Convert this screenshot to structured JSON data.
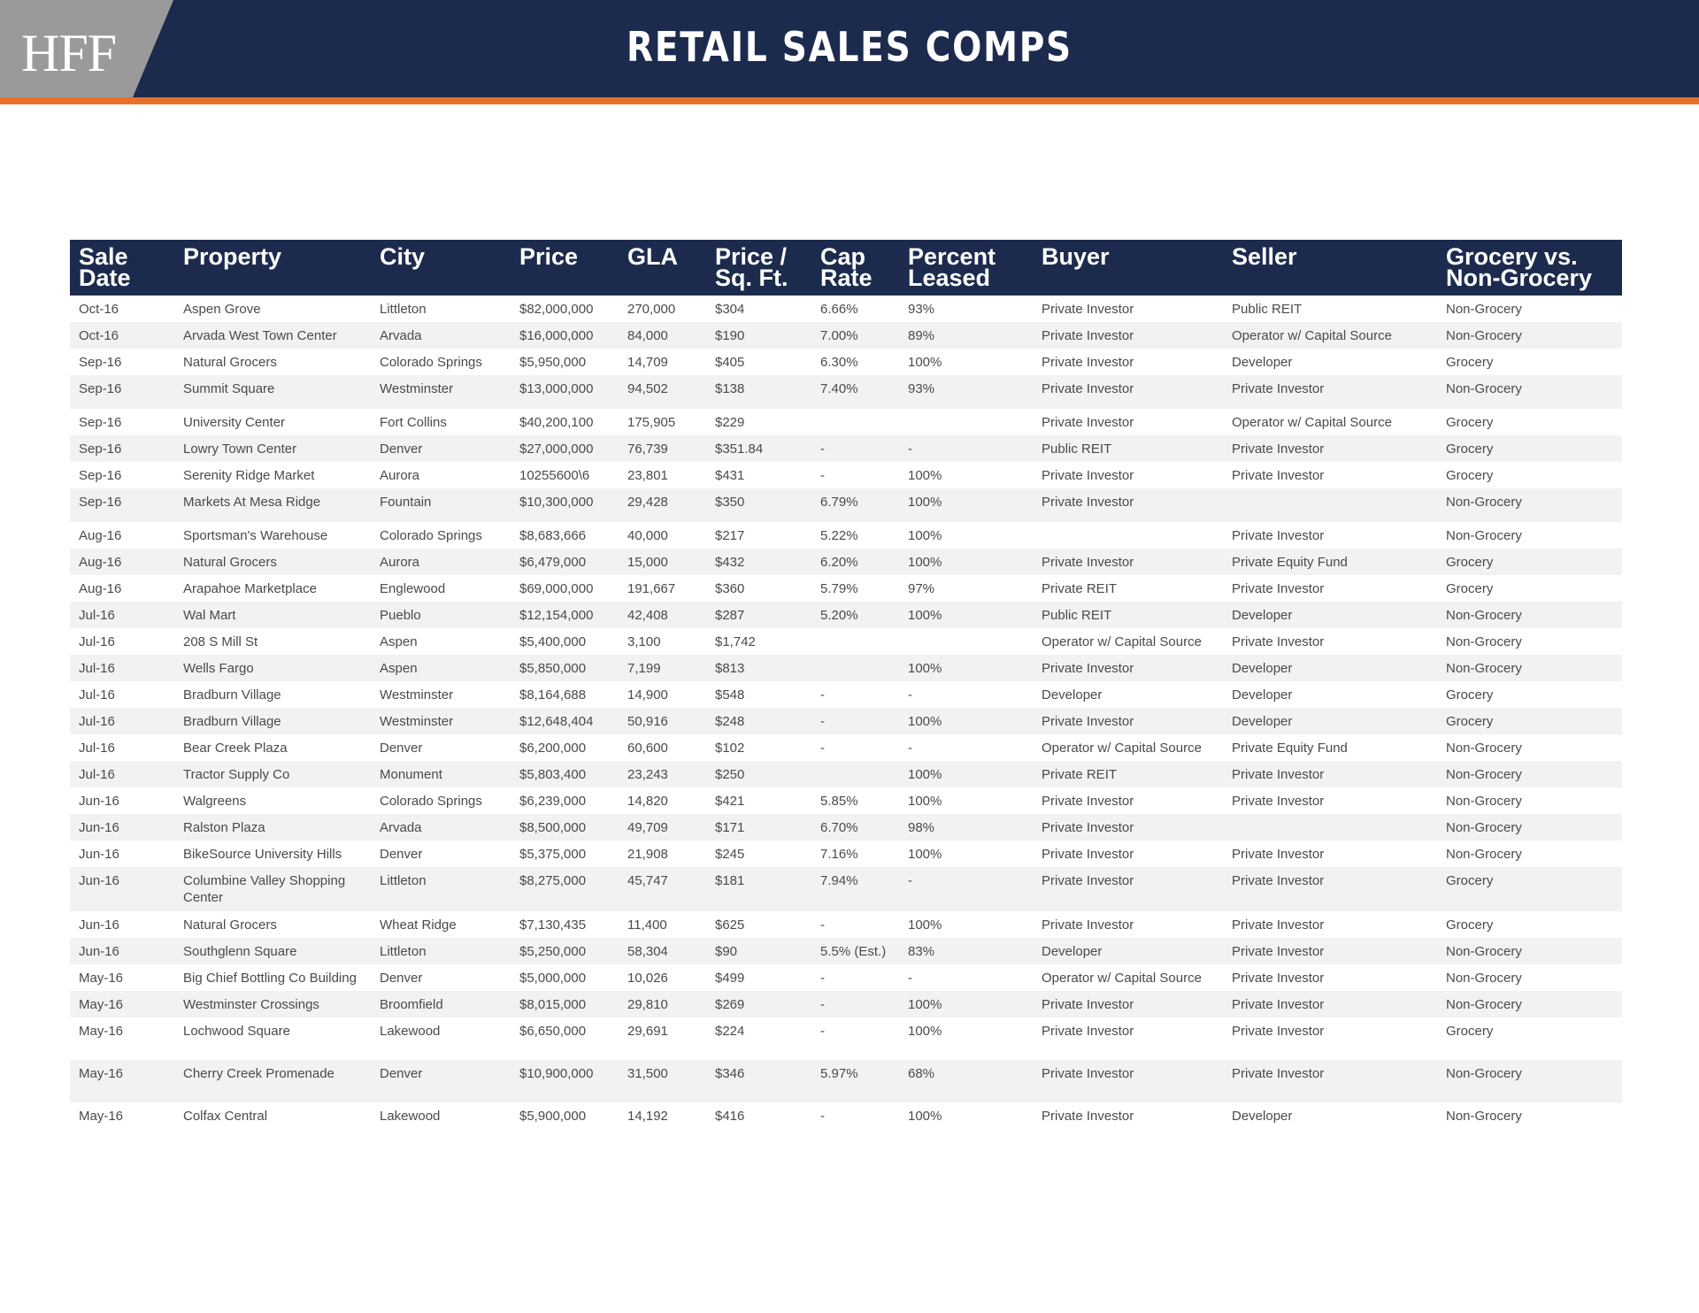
{
  "header": {
    "logo": "HFF",
    "title": "RETAIL SALES COMPS"
  },
  "colors": {
    "navy": "#1c2b4d",
    "orange": "#e8702a",
    "logo_gray": "#9a9a9a"
  },
  "table": {
    "headers": [
      "Sale\nDate",
      "Property",
      "City",
      "Price",
      "GLA",
      "Price /\nSq. Ft.",
      "Cap\nRate",
      "Percent\nLeased",
      "Buyer",
      "Seller",
      "Grocery vs.\nNon-Grocery"
    ],
    "rows": [
      [
        "Oct-16",
        "Aspen Grove",
        "Littleton",
        "$82,000,000",
        "270,000",
        "$304",
        "6.66%",
        "93%",
        "Private Investor",
        "Public REIT",
        "Non-Grocery"
      ],
      [
        "Oct-16",
        "Arvada West Town Center",
        "Arvada",
        "$16,000,000",
        "84,000",
        "$190",
        "7.00%",
        "89%",
        "Private Investor",
        "Operator w/ Capital Source",
        "Non-Grocery"
      ],
      [
        "Sep-16",
        "Natural Grocers",
        "Colorado Springs",
        "$5,950,000",
        "14,709",
        "$405",
        "6.30%",
        "100%",
        "Private Investor",
        "Developer",
        "Grocery"
      ],
      [
        "Sep-16",
        "Summit Square",
        "Westminster",
        "$13,000,000",
        "94,502",
        "$138",
        "7.40%",
        "93%",
        "Private Investor",
        "Private Investor",
        "Non-Grocery"
      ],
      [
        "Sep-16",
        "University Center",
        "Fort Collins",
        "$40,200,100",
        "175,905",
        "$229",
        "",
        "",
        "Private Investor",
        "Operator w/ Capital Source",
        "Grocery"
      ],
      [
        "Sep-16",
        "Lowry Town Center",
        "Denver",
        "$27,000,000",
        "76,739",
        "$351.84",
        "-",
        "-",
        "Public REIT",
        "Private Investor",
        "Grocery"
      ],
      [
        "Sep-16",
        "Serenity Ridge Market",
        "Aurora",
        "10255600\\6",
        "23,801",
        "$431",
        "-",
        "100%",
        "Private Investor",
        "Private Investor",
        "Grocery"
      ],
      [
        "Sep-16",
        "Markets At Mesa Ridge",
        "Fountain",
        "$10,300,000",
        "29,428",
        "$350",
        "6.79%",
        "100%",
        "Private Investor",
        "",
        "Non-Grocery"
      ],
      [
        "Aug-16",
        "Sportsman's Warehouse",
        "Colorado Springs",
        "$8,683,666",
        "40,000",
        "$217",
        "5.22%",
        "100%",
        "",
        "Private Investor",
        "Non-Grocery"
      ],
      [
        "Aug-16",
        "Natural Grocers",
        "Aurora",
        "$6,479,000",
        "15,000",
        "$432",
        "6.20%",
        "100%",
        "Private Investor",
        "Private Equity Fund",
        "Grocery"
      ],
      [
        "Aug-16",
        "Arapahoe Marketplace",
        "Englewood",
        "$69,000,000",
        "191,667",
        "$360",
        "5.79%",
        "97%",
        "Private REIT",
        "Private Investor",
        "Grocery"
      ],
      [
        "Jul-16",
        "Wal Mart",
        "Pueblo",
        "$12,154,000",
        "42,408",
        "$287",
        "5.20%",
        "100%",
        "Public REIT",
        "Developer",
        "Non-Grocery"
      ],
      [
        "Jul-16",
        "208 S Mill St",
        "Aspen",
        "$5,400,000",
        "3,100",
        "$1,742",
        "",
        "",
        "Operator w/ Capital Source",
        "Private Investor",
        "Non-Grocery"
      ],
      [
        "Jul-16",
        "Wells Fargo",
        "Aspen",
        "$5,850,000",
        "7,199",
        "$813",
        "",
        "100%",
        "Private Investor",
        "Developer",
        "Non-Grocery"
      ],
      [
        "Jul-16",
        "Bradburn Village",
        "Westminster",
        "$8,164,688",
        "14,900",
        "$548",
        "-",
        "-",
        "Developer",
        "Developer",
        "Grocery"
      ],
      [
        "Jul-16",
        "Bradburn Village",
        "Westminster",
        "$12,648,404",
        "50,916",
        "$248",
        "-",
        "100%",
        "Private Investor",
        "Developer",
        "Grocery"
      ],
      [
        "Jul-16",
        "Bear Creek Plaza",
        "Denver",
        "$6,200,000",
        "60,600",
        "$102",
        "-",
        "-",
        "Operator w/ Capital Source",
        "Private Equity Fund",
        "Non-Grocery"
      ],
      [
        "Jul-16",
        "Tractor Supply Co",
        "Monument",
        "$5,803,400",
        "23,243",
        "$250",
        "",
        "100%",
        "Private REIT",
        "Private Investor",
        "Non-Grocery"
      ],
      [
        "Jun-16",
        "Walgreens",
        "Colorado Springs",
        "$6,239,000",
        "14,820",
        "$421",
        "5.85%",
        "100%",
        "Private Investor",
        "Private Investor",
        "Non-Grocery"
      ],
      [
        "Jun-16",
        "Ralston Plaza",
        "Arvada",
        "$8,500,000",
        "49,709",
        "$171",
        "6.70%",
        "98%",
        "Private Investor",
        "",
        "Non-Grocery"
      ],
      [
        "Jun-16",
        "BikeSource University Hills",
        "Denver",
        "$5,375,000",
        "21,908",
        "$245",
        "7.16%",
        "100%",
        "Private Investor",
        "Private Investor",
        "Non-Grocery"
      ],
      [
        "Jun-16",
        "Columbine Valley Shopping Center",
        "Littleton",
        "$8,275,000",
        "45,747",
        "$181",
        "7.94%",
        "-",
        "Private Investor",
        "Private Investor",
        "Grocery"
      ],
      [
        "Jun-16",
        "Natural Grocers",
        "Wheat Ridge",
        "$7,130,435",
        "11,400",
        "$625",
        "-",
        "100%",
        "Private Investor",
        "Private Investor",
        "Grocery"
      ],
      [
        "Jun-16",
        "Southglenn Square",
        "Littleton",
        "$5,250,000",
        "58,304",
        "$90",
        "5.5% (Est.)",
        "83%",
        "Developer",
        "Private Investor",
        "Non-Grocery"
      ],
      [
        "May-16",
        "Big Chief Bottling Co Building",
        "Denver",
        "$5,000,000",
        "10,026",
        "$499",
        "-",
        "-",
        "Operator w/ Capital Source",
        "Private Investor",
        "Non-Grocery"
      ],
      [
        "May-16",
        "Westminster Crossings",
        "Broomfield",
        "$8,015,000",
        "29,810",
        "$269",
        "-",
        "100%",
        "Private Investor",
        "Private Investor",
        "Non-Grocery"
      ],
      [
        "May-16",
        "Lochwood Square",
        "Lakewood",
        "$6,650,000",
        "29,691",
        "$224",
        "-",
        "100%",
        "Private Investor",
        "Private Investor",
        "Grocery"
      ],
      [
        "May-16",
        "Cherry Creek Promenade",
        "Denver",
        "$10,900,000",
        "31,500",
        "$346",
        "5.97%",
        "68%",
        "Private Investor",
        "Private Investor",
        "Non-Grocery"
      ],
      [
        "May-16",
        "Colfax Central",
        "Lakewood",
        "$5,900,000",
        "14,192",
        "$416",
        "-",
        "100%",
        "Private Investor",
        "Developer",
        "Non-Grocery"
      ]
    ]
  }
}
